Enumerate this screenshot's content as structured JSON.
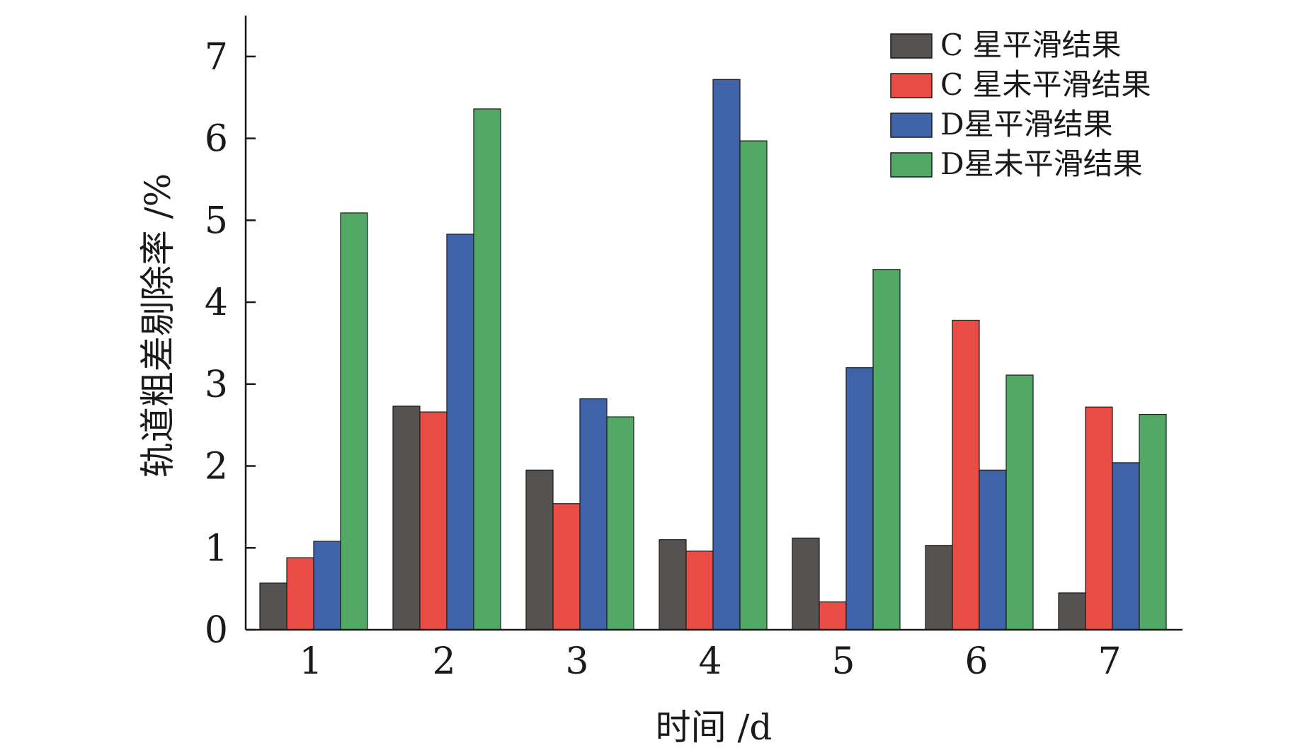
{
  "chart_data": {
    "type": "bar",
    "categories": [
      "1",
      "2",
      "3",
      "4",
      "5",
      "6",
      "7"
    ],
    "series": [
      {
        "name": "C 星平滑结果",
        "color": "#55524f",
        "values": [
          0.57,
          2.73,
          1.95,
          1.1,
          1.12,
          1.03,
          0.45
        ]
      },
      {
        "name": "C 星未平滑结果",
        "color": "#e84c44",
        "values": [
          0.88,
          2.66,
          1.54,
          0.96,
          0.34,
          3.78,
          2.72
        ]
      },
      {
        "name": "D星平滑结果",
        "color": "#3f63a8",
        "values": [
          1.08,
          4.83,
          2.82,
          6.72,
          3.2,
          1.95,
          2.04
        ]
      },
      {
        "name": "D星未平滑结果",
        "color": "#52a865",
        "values": [
          5.09,
          6.36,
          2.6,
          5.97,
          4.4,
          3.11,
          2.63
        ]
      }
    ],
    "xlabel": "时间 /d",
    "ylabel": "轨道粗差剔除率 /%",
    "ylim": [
      0,
      7.5
    ],
    "yticks": [
      0,
      1,
      2,
      3,
      4,
      5,
      6,
      7
    ],
    "grid": false,
    "legend_position": "top-right"
  }
}
